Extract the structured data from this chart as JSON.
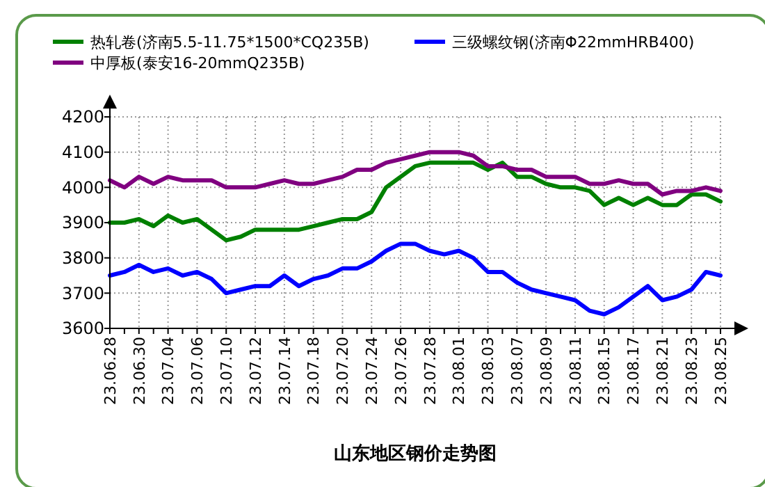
{
  "chart_data": {
    "type": "line",
    "title": "山东地区钢价走势图",
    "categories": [
      "23.06.28",
      null,
      "23.06.30",
      null,
      "23.07.04",
      null,
      "23.07.06",
      null,
      "23.07.10",
      null,
      "23.07.12",
      null,
      "23.07.14",
      null,
      "23.07.18",
      null,
      "23.07.20",
      null,
      "23.07.24",
      null,
      "23.07.26",
      null,
      "23.07.28",
      null,
      "23.08.01",
      null,
      "23.08.03",
      null,
      "23.08.07",
      null,
      "23.08.09",
      null,
      "23.08.11",
      null,
      "23.08.15",
      null,
      "23.08.17",
      null,
      "23.08.21",
      null,
      "23.08.23",
      null,
      "23.08.25"
    ],
    "series": [
      {
        "name": "热轧卷(济南5.5-11.75*1500*CQ235B)",
        "color": "#008000",
        "values": [
          3900,
          3900,
          3910,
          3890,
          3920,
          3900,
          3910,
          3880,
          3850,
          3860,
          3880,
          3880,
          3880,
          3880,
          3890,
          3900,
          3910,
          3910,
          3930,
          4000,
          4030,
          4060,
          4070,
          4070,
          4070,
          4070,
          4050,
          4070,
          4030,
          4030,
          4010,
          4000,
          4000,
          3990,
          3950,
          3970,
          3950,
          3970,
          3950,
          3950,
          3980,
          3980,
          3960
        ]
      },
      {
        "name": "中厚板(泰安16-20mmQ235B)",
        "color": "#800080",
        "values": [
          4020,
          4000,
          4030,
          4010,
          4030,
          4020,
          4020,
          4020,
          4000,
          4000,
          4000,
          4010,
          4020,
          4010,
          4010,
          4020,
          4030,
          4050,
          4050,
          4070,
          4080,
          4090,
          4100,
          4100,
          4100,
          4090,
          4060,
          4060,
          4050,
          4050,
          4030,
          4030,
          4030,
          4010,
          4010,
          4020,
          4010,
          4010,
          3980,
          3990,
          3990,
          4000,
          3990
        ]
      },
      {
        "name": "三级螺纹钢(济南Φ22mmHRB400)",
        "color": "#0000ff",
        "values": [
          3750,
          3760,
          3780,
          3760,
          3770,
          3750,
          3760,
          3740,
          3700,
          3710,
          3720,
          3720,
          3750,
          3720,
          3740,
          3750,
          3770,
          3770,
          3790,
          3820,
          3840,
          3840,
          3820,
          3810,
          3820,
          3800,
          3760,
          3760,
          3730,
          3710,
          3700,
          3690,
          3680,
          3650,
          3640,
          3660,
          3690,
          3720,
          3680,
          3690,
          3710,
          3760,
          3750
        ]
      }
    ],
    "ylim": [
      3600,
      4200
    ],
    "yticks": [
      3600,
      3700,
      3800,
      3900,
      4000,
      4100,
      4200
    ],
    "grid": true,
    "legend": "top",
    "marker": "none",
    "line_style": "solid"
  }
}
